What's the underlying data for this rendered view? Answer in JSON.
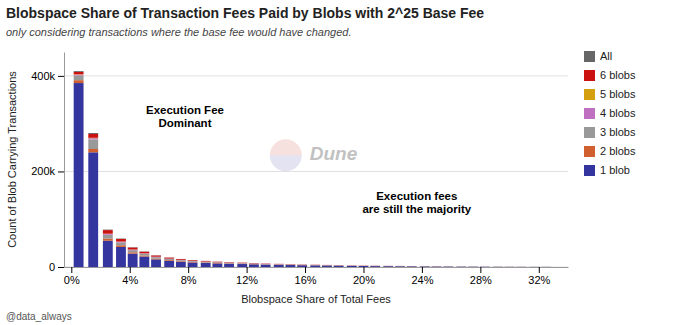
{
  "chart_data": {
    "type": "bar",
    "stacked": true,
    "title": "Blobspace Share of Transaction Fees Paid by Blobs with 2^25 Base Fee",
    "subtitle": "only considering transactions where the base fee would have changed.",
    "xlabel": "Blobspace Share of Total Fees",
    "ylabel": "Count of Blob Carrying Transactions",
    "watermark": "Dune",
    "credit": "@data_always",
    "annotations": [
      "Execution Fee\nDominant",
      "Execution fees\nare still the majority"
    ],
    "grid": true,
    "x": [
      0.005,
      0.015,
      0.025,
      0.034,
      0.042,
      0.05,
      0.058,
      0.067,
      0.075,
      0.083,
      0.092,
      0.1,
      0.108,
      0.117,
      0.125,
      0.133,
      0.142,
      0.15,
      0.158,
      0.167,
      0.175,
      0.183,
      0.192,
      0.2,
      0.208,
      0.217,
      0.225,
      0.233,
      0.242,
      0.25,
      0.258,
      0.267,
      0.275,
      0.283,
      0.292,
      0.3,
      0.308,
      0.317,
      0.325
    ],
    "xlim": [
      -0.005,
      0.34
    ],
    "xticks": [
      {
        "value": 0.0,
        "label": "0%"
      },
      {
        "value": 0.04,
        "label": "4%"
      },
      {
        "value": 0.08,
        "label": "8%"
      },
      {
        "value": 0.12,
        "label": "12%"
      },
      {
        "value": 0.16,
        "label": "16%"
      },
      {
        "value": 0.2,
        "label": "20%"
      },
      {
        "value": 0.24,
        "label": "24%"
      },
      {
        "value": 0.28,
        "label": "28%"
      },
      {
        "value": 0.32,
        "label": "32%"
      }
    ],
    "ylim": [
      0,
      450000
    ],
    "yticks": [
      0,
      {
        "value": 200000,
        "label": "200k"
      },
      {
        "value": 400000,
        "label": "400k"
      }
    ],
    "series": [
      {
        "name": "1 blob",
        "color": "#3535a0",
        "values": [
          385000,
          240000,
          55000,
          42000,
          28000,
          22000,
          16000,
          13000,
          11000,
          9500,
          8500,
          7500,
          6800,
          6200,
          5600,
          5000,
          4500,
          4100,
          3700,
          3400,
          3000,
          2700,
          2400,
          2100,
          1900,
          1700,
          1500,
          1300,
          1100,
          950,
          820,
          700,
          600,
          500,
          420,
          350,
          290,
          240,
          200
        ]
      },
      {
        "name": "2 blobs",
        "color": "#d06030",
        "values": [
          6000,
          7000,
          4500,
          3500,
          2800,
          2200,
          1800,
          1500,
          1300,
          1100,
          1000,
          900,
          820,
          740,
          670,
          610,
          550,
          500,
          455,
          410,
          370,
          340,
          310,
          280,
          255,
          230,
          210,
          190,
          170,
          150,
          135,
          120,
          105,
          90,
          78,
          66,
          56,
          47,
          40
        ]
      },
      {
        "name": "3 blobs",
        "color": "#999999",
        "values": [
          10000,
          20000,
          8000,
          6000,
          4500,
          3500,
          2800,
          2300,
          1900,
          1600,
          1400,
          1200,
          1100,
          980,
          880,
          790,
          710,
          640,
          580,
          520,
          470,
          430,
          390,
          350,
          320,
          290,
          260,
          235,
          210,
          190,
          170,
          152,
          135,
          120,
          106,
          93,
          81,
          70,
          61
        ]
      },
      {
        "name": "4 blobs",
        "color": "#c070c0",
        "values": [
          1500,
          2500,
          1800,
          1400,
          1100,
          900,
          750,
          630,
          530,
          450,
          390,
          340,
          300,
          265,
          235,
          210,
          188,
          168,
          150,
          135,
          121,
          110,
          99,
          89,
          80,
          72,
          65,
          59,
          53,
          48,
          43,
          38,
          34,
          30,
          27,
          24,
          21,
          18,
          16
        ]
      },
      {
        "name": "5 blobs",
        "color": "#d4a010",
        "values": [
          800,
          900,
          450,
          360,
          290,
          240,
          200,
          170,
          145,
          123,
          105,
          91,
          79,
          68,
          59,
          52,
          45,
          39,
          34,
          30,
          26,
          23,
          20,
          18,
          16,
          14,
          13,
          11,
          10,
          9,
          8,
          7,
          6,
          6,
          5,
          5,
          4,
          4,
          3
        ]
      },
      {
        "name": "6 blobs",
        "color": "#cc1111",
        "values": [
          5000,
          8000,
          7500,
          5500,
          4200,
          3200,
          2600,
          2100,
          1700,
          1450,
          1250,
          1080,
          940,
          820,
          720,
          630,
          550,
          490,
          430,
          385,
          345,
          310,
          278,
          250,
          225,
          202,
          182,
          163,
          147,
          132,
          119,
          107,
          96,
          86,
          78,
          70,
          63,
          56,
          51
        ]
      },
      {
        "name": "All",
        "color": "#666666",
        "values": [
          1800,
          2000,
          1000,
          780,
          620,
          500,
          410,
          340,
          285,
          242,
          206,
          176,
          151,
          130,
          113,
          97,
          84,
          73,
          64,
          56,
          49,
          43,
          38,
          34,
          30,
          27,
          24,
          21,
          19,
          17,
          15,
          14,
          12,
          11,
          10,
          9,
          8,
          7,
          6
        ]
      }
    ]
  }
}
